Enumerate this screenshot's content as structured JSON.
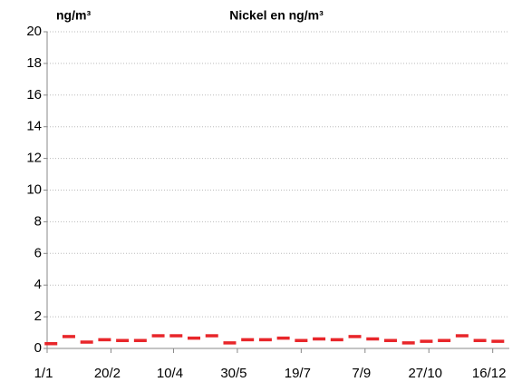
{
  "chart_data": {
    "type": "dash",
    "title": "Nickel en ng/m³",
    "y_label": "ng/m³",
    "x": [
      3,
      17,
      31,
      45,
      59,
      73,
      87,
      101,
      115,
      129,
      143,
      157,
      171,
      185,
      199,
      213,
      227,
      241,
      255,
      269,
      283,
      297,
      311,
      325,
      339,
      353
    ],
    "values": [
      0.3,
      0.75,
      0.4,
      0.55,
      0.5,
      0.5,
      0.8,
      0.8,
      0.65,
      0.8,
      0.35,
      0.55,
      0.55,
      0.65,
      0.5,
      0.6,
      0.55,
      0.75,
      0.6,
      0.5,
      0.35,
      0.45,
      0.5,
      0.8,
      0.5,
      0.45
    ],
    "color": "#e8262a",
    "xlim": [
      0,
      362
    ],
    "xticks": [
      {
        "value": 0,
        "label": "1/1"
      },
      {
        "value": 50,
        "label": "20/2"
      },
      {
        "value": 99,
        "label": "10/4"
      },
      {
        "value": 149,
        "label": "30/5"
      },
      {
        "value": 199,
        "label": "19/7"
      },
      {
        "value": 249,
        "label": "7/9"
      },
      {
        "value": 299,
        "label": "27/10"
      },
      {
        "value": 349,
        "label": "16/12"
      }
    ],
    "ylim": [
      0,
      20
    ],
    "yticks": [
      0,
      2,
      4,
      6,
      8,
      10,
      12,
      14,
      16,
      18,
      20
    ],
    "grid": true
  }
}
